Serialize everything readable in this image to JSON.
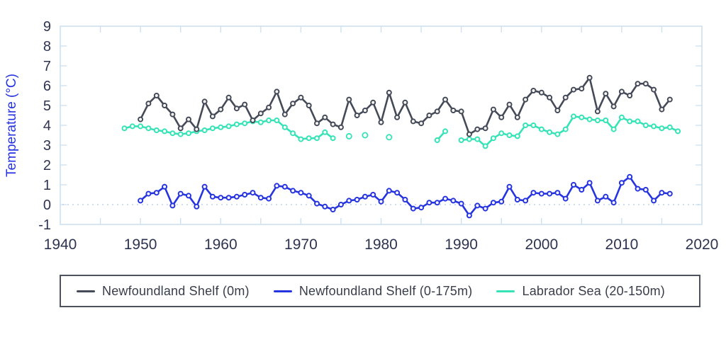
{
  "chart_data": {
    "type": "line",
    "title": "",
    "xlabel": "",
    "ylabel": "Temperature (°C)",
    "xlim": [
      1940,
      2020
    ],
    "ylim": [
      -1,
      9
    ],
    "x_ticks": [
      1940,
      1950,
      1960,
      1970,
      1980,
      1990,
      2000,
      2010,
      2020
    ],
    "x_minor_ticks": [
      1945,
      1950,
      1955,
      1960,
      1965,
      1970,
      1975,
      1980,
      1985,
      1990,
      1995,
      2000,
      2005,
      2010,
      2015
    ],
    "y_ticks": [
      9,
      8,
      7,
      6,
      5,
      4,
      3,
      2,
      1,
      0,
      -1
    ],
    "grid": false,
    "zero_reference_line": 0,
    "legend_position": "bottom",
    "colors": {
      "axis_text": "#2e3450",
      "axis_title": "#2533e2",
      "frame_and_ticks": "#cfe0ef",
      "zero_line": "#bed3e8",
      "legend_border": "#4d525c",
      "legend_text": "#383d4a",
      "background": "#ffffff"
    },
    "series": [
      {
        "name": "Newfoundland Shelf (0m)",
        "color": "#454a58",
        "segments": [
          [
            [
              1950,
              4.3
            ],
            [
              1951,
              5.1
            ],
            [
              1952,
              5.5
            ],
            [
              1953,
              5.0
            ],
            [
              1954,
              4.55
            ],
            [
              1955,
              3.85
            ],
            [
              1956,
              4.3
            ],
            [
              1957,
              3.8
            ],
            [
              1958,
              5.2
            ],
            [
              1959,
              4.45
            ],
            [
              1960,
              4.8
            ],
            [
              1961,
              5.4
            ],
            [
              1962,
              4.85
            ],
            [
              1963,
              5.05
            ],
            [
              1964,
              4.25
            ],
            [
              1965,
              4.6
            ],
            [
              1966,
              4.9
            ],
            [
              1967,
              5.7
            ],
            [
              1968,
              4.55
            ],
            [
              1969,
              5.1
            ],
            [
              1970,
              5.4
            ],
            [
              1971,
              5.0
            ],
            [
              1972,
              4.1
            ],
            [
              1973,
              4.4
            ],
            [
              1974,
              4.05
            ],
            [
              1975,
              3.9
            ],
            [
              1976,
              5.3
            ],
            [
              1977,
              4.5
            ],
            [
              1978,
              4.75
            ],
            [
              1979,
              5.15
            ],
            [
              1980,
              4.15
            ],
            [
              1981,
              5.65
            ],
            [
              1982,
              4.4
            ],
            [
              1983,
              5.15
            ],
            [
              1984,
              4.2
            ],
            [
              1985,
              4.1
            ],
            [
              1986,
              4.5
            ],
            [
              1987,
              4.7
            ],
            [
              1988,
              5.3
            ],
            [
              1989,
              4.75
            ],
            [
              1990,
              4.7
            ],
            [
              1991,
              3.55
            ],
            [
              1992,
              3.8
            ],
            [
              1993,
              3.85
            ],
            [
              1994,
              4.8
            ],
            [
              1995,
              4.4
            ],
            [
              1996,
              5.05
            ],
            [
              1997,
              4.4
            ],
            [
              1998,
              5.3
            ],
            [
              1999,
              5.75
            ],
            [
              2000,
              5.65
            ],
            [
              2001,
              5.4
            ],
            [
              2002,
              4.75
            ],
            [
              2003,
              5.4
            ],
            [
              2004,
              5.8
            ],
            [
              2005,
              5.85
            ],
            [
              2006,
              6.4
            ],
            [
              2007,
              4.7
            ],
            [
              2008,
              5.6
            ],
            [
              2009,
              4.95
            ],
            [
              2010,
              5.7
            ],
            [
              2011,
              5.5
            ],
            [
              2012,
              6.1
            ],
            [
              2013,
              6.1
            ],
            [
              2014,
              5.8
            ],
            [
              2015,
              4.8
            ],
            [
              2016,
              5.3
            ]
          ]
        ],
        "isolated_points": []
      },
      {
        "name": "Newfoundland Shelf (0-175m)",
        "color": "#2634e0",
        "segments": [
          [
            [
              1950,
              0.2
            ],
            [
              1951,
              0.55
            ],
            [
              1952,
              0.6
            ],
            [
              1953,
              0.9
            ],
            [
              1954,
              -0.05
            ],
            [
              1955,
              0.55
            ],
            [
              1956,
              0.45
            ],
            [
              1957,
              -0.1
            ],
            [
              1958,
              0.9
            ],
            [
              1959,
              0.4
            ],
            [
              1960,
              0.35
            ],
            [
              1961,
              0.35
            ],
            [
              1962,
              0.4
            ],
            [
              1963,
              0.5
            ],
            [
              1964,
              0.6
            ],
            [
              1965,
              0.35
            ],
            [
              1966,
              0.3
            ],
            [
              1967,
              0.95
            ],
            [
              1968,
              0.9
            ],
            [
              1969,
              0.7
            ],
            [
              1970,
              0.6
            ],
            [
              1971,
              0.45
            ],
            [
              1972,
              0.05
            ],
            [
              1973,
              -0.1
            ],
            [
              1974,
              -0.25
            ],
            [
              1975,
              0.0
            ],
            [
              1976,
              0.2
            ],
            [
              1977,
              0.25
            ],
            [
              1978,
              0.4
            ],
            [
              1979,
              0.5
            ],
            [
              1980,
              0.15
            ],
            [
              1981,
              0.7
            ],
            [
              1982,
              0.6
            ],
            [
              1983,
              0.25
            ],
            [
              1984,
              -0.2
            ],
            [
              1985,
              -0.15
            ],
            [
              1986,
              0.1
            ],
            [
              1987,
              0.1
            ],
            [
              1988,
              0.3
            ],
            [
              1989,
              0.2
            ],
            [
              1990,
              0.05
            ],
            [
              1991,
              -0.55
            ],
            [
              1992,
              -0.05
            ],
            [
              1993,
              -0.2
            ],
            [
              1994,
              0.1
            ],
            [
              1995,
              0.15
            ],
            [
              1996,
              0.9
            ],
            [
              1997,
              0.25
            ],
            [
              1998,
              0.2
            ],
            [
              1999,
              0.6
            ],
            [
              2000,
              0.55
            ],
            [
              2001,
              0.55
            ],
            [
              2002,
              0.6
            ],
            [
              2003,
              0.3
            ],
            [
              2004,
              1.0
            ],
            [
              2005,
              0.75
            ],
            [
              2006,
              1.1
            ],
            [
              2007,
              0.2
            ],
            [
              2008,
              0.4
            ],
            [
              2009,
              0.1
            ],
            [
              2010,
              1.1
            ],
            [
              2011,
              1.4
            ],
            [
              2012,
              0.8
            ],
            [
              2013,
              0.75
            ],
            [
              2014,
              0.2
            ],
            [
              2015,
              0.6
            ],
            [
              2016,
              0.55
            ]
          ]
        ],
        "isolated_points": []
      },
      {
        "name": "Labrador Sea (20-150m)",
        "color": "#35e3b7",
        "segments": [
          [
            [
              1948,
              3.85
            ],
            [
              1949,
              3.95
            ],
            [
              1950,
              3.95
            ],
            [
              1951,
              3.85
            ],
            [
              1952,
              3.75
            ],
            [
              1953,
              3.7
            ],
            [
              1954,
              3.6
            ],
            [
              1955,
              3.55
            ],
            [
              1956,
              3.6
            ],
            [
              1957,
              3.7
            ],
            [
              1958,
              3.75
            ],
            [
              1959,
              3.85
            ],
            [
              1960,
              3.9
            ],
            [
              1961,
              3.95
            ],
            [
              1962,
              4.05
            ],
            [
              1963,
              4.1
            ],
            [
              1964,
              4.2
            ],
            [
              1965,
              4.15
            ],
            [
              1966,
              4.25
            ],
            [
              1967,
              4.25
            ],
            [
              1968,
              3.9
            ],
            [
              1969,
              3.6
            ],
            [
              1970,
              3.3
            ],
            [
              1971,
              3.35
            ],
            [
              1972,
              3.35
            ],
            [
              1973,
              3.65
            ],
            [
              1974,
              3.35
            ]
          ],
          [
            [
              1987,
              3.25
            ],
            [
              1988,
              3.7
            ]
          ],
          [
            [
              1990,
              3.25
            ],
            [
              1991,
              3.3
            ],
            [
              1992,
              3.3
            ],
            [
              1993,
              2.95
            ],
            [
              1994,
              3.35
            ],
            [
              1995,
              3.6
            ],
            [
              1996,
              3.5
            ],
            [
              1997,
              3.45
            ],
            [
              1998,
              4.0
            ],
            [
              1999,
              4.0
            ],
            [
              2000,
              3.8
            ],
            [
              2001,
              3.65
            ],
            [
              2002,
              3.55
            ],
            [
              2003,
              3.8
            ],
            [
              2004,
              4.45
            ],
            [
              2005,
              4.4
            ],
            [
              2006,
              4.3
            ],
            [
              2007,
              4.25
            ],
            [
              2008,
              4.25
            ],
            [
              2009,
              3.8
            ],
            [
              2010,
              4.4
            ],
            [
              2011,
              4.2
            ],
            [
              2012,
              4.2
            ],
            [
              2013,
              4.0
            ],
            [
              2014,
              3.95
            ],
            [
              2015,
              3.85
            ],
            [
              2016,
              3.9
            ],
            [
              2017,
              3.7
            ]
          ]
        ],
        "isolated_points": [
          [
            1976,
            3.45
          ],
          [
            1978,
            3.5
          ],
          [
            1981,
            3.4
          ]
        ]
      }
    ]
  },
  "legend": {
    "entries": [
      {
        "label": "Newfoundland Shelf (0m)"
      },
      {
        "label": "Newfoundland Shelf (0-175m)"
      },
      {
        "label": "Labrador Sea (20-150m)"
      }
    ]
  }
}
